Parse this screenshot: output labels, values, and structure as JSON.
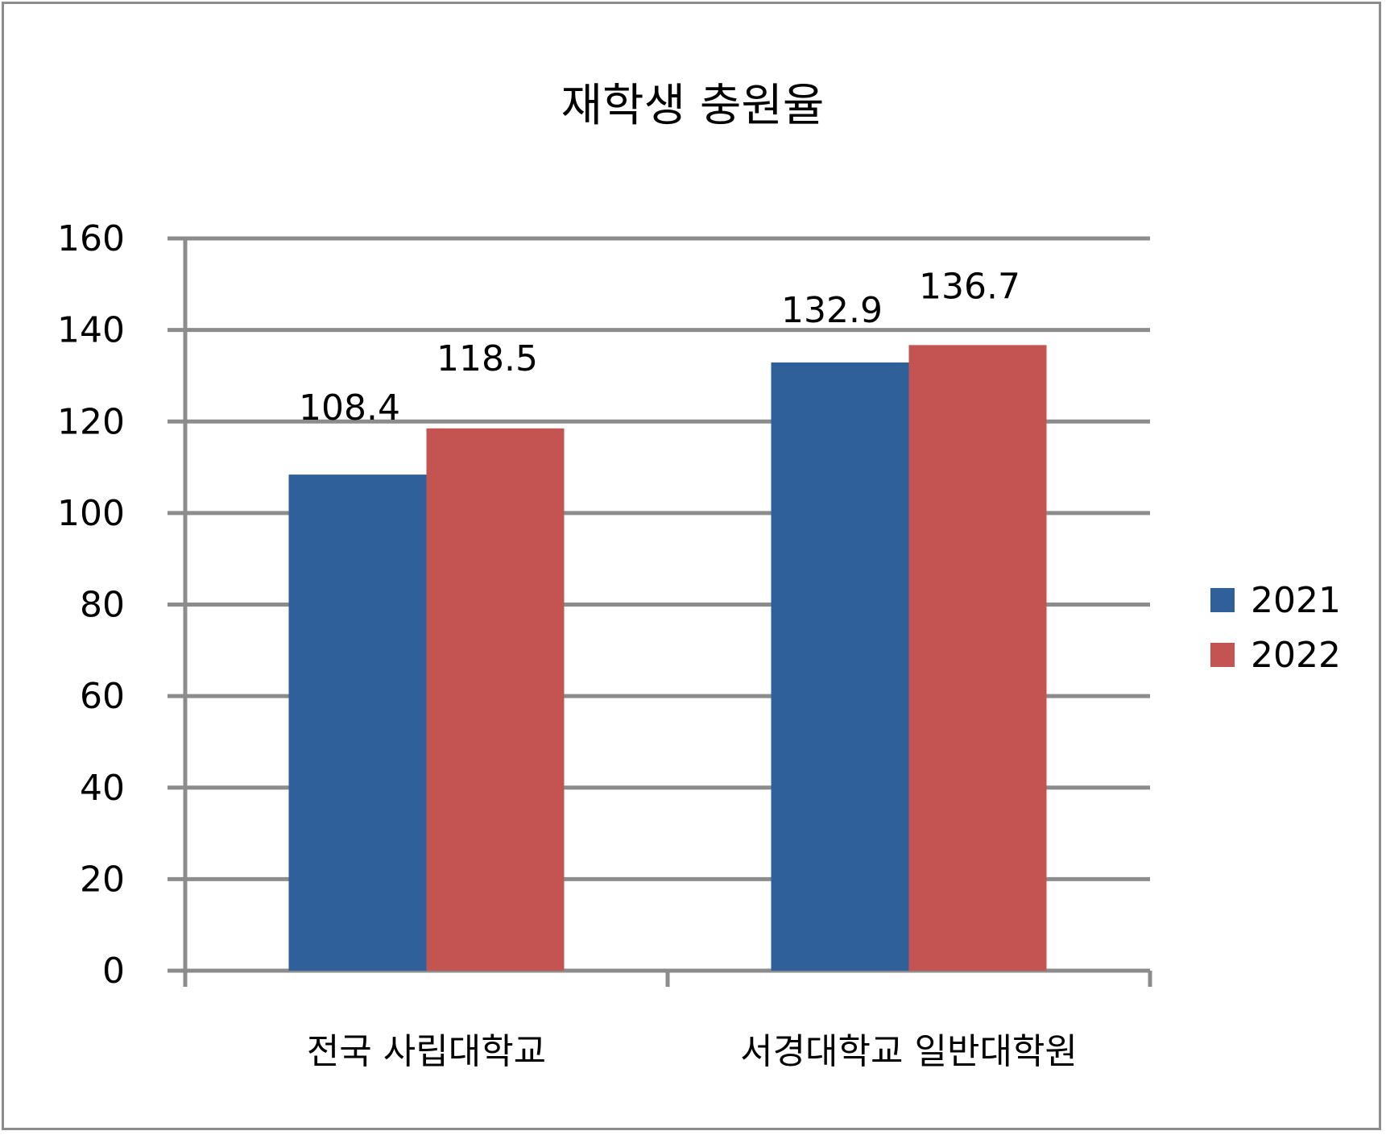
{
  "chart_data": {
    "type": "bar",
    "title": "재학생 충원율",
    "categories": [
      "전국 사립대학교",
      "서경대학교 일반대학원"
    ],
    "series": [
      {
        "name": "2021",
        "values": [
          108.4,
          132.9
        ],
        "color": "#30609a"
      },
      {
        "name": "2022",
        "values": [
          118.5,
          136.7
        ],
        "color": "#c45452"
      }
    ],
    "data_labels": [
      [
        "108.4",
        "132.9"
      ],
      [
        "118.5",
        "136.7"
      ]
    ],
    "ylim": [
      0,
      160
    ],
    "yticks": [
      0,
      20,
      40,
      60,
      80,
      100,
      120,
      140,
      160
    ],
    "grid": true,
    "gridline_color": "#8c8c8c",
    "legend_position": "right",
    "xlabel": "",
    "ylabel": ""
  }
}
